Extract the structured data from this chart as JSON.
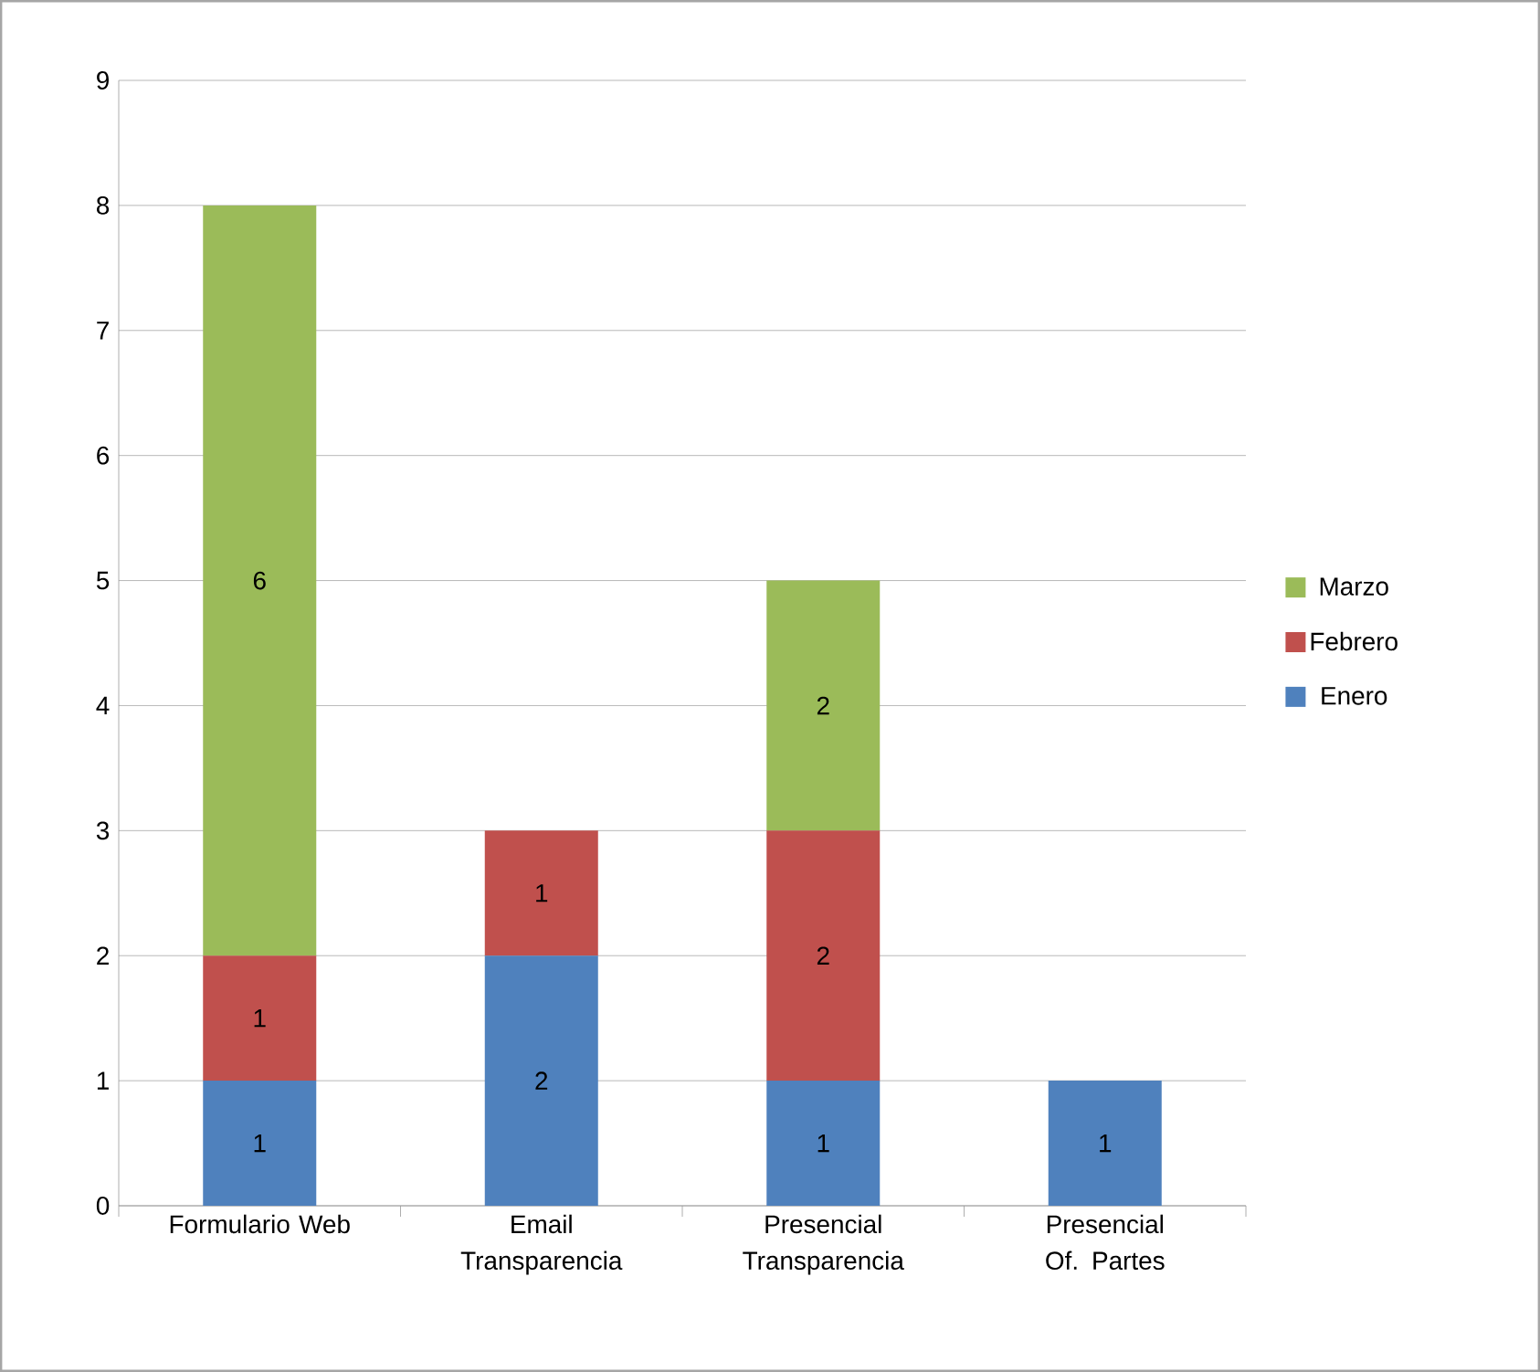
{
  "chart_data": {
    "type": "bar",
    "stacked": true,
    "categories": [
      "Formulario Web",
      "Email Transparencia",
      "Presencial Transparencia",
      "Presencial Of. Partes"
    ],
    "series": [
      {
        "name": "Enero",
        "color": "#4f81bd",
        "values": [
          1,
          2,
          1,
          1
        ],
        "value_labels": [
          "1",
          "2",
          "1",
          "1"
        ]
      },
      {
        "name": "Febrero",
        "color": "#c0504d",
        "values": [
          1,
          1,
          2,
          0
        ],
        "value_labels": [
          "1",
          "1",
          "2",
          null
        ]
      },
      {
        "name": "Marzo",
        "color": "#9bbb59",
        "values": [
          6,
          0,
          2,
          0
        ],
        "value_labels": [
          "6",
          null,
          "2",
          null
        ]
      }
    ],
    "ylim": [
      0,
      9
    ],
    "yticks": [
      0,
      1,
      2,
      3,
      4,
      5,
      6,
      7,
      8,
      9
    ],
    "grid": "y",
    "legend": "right"
  }
}
